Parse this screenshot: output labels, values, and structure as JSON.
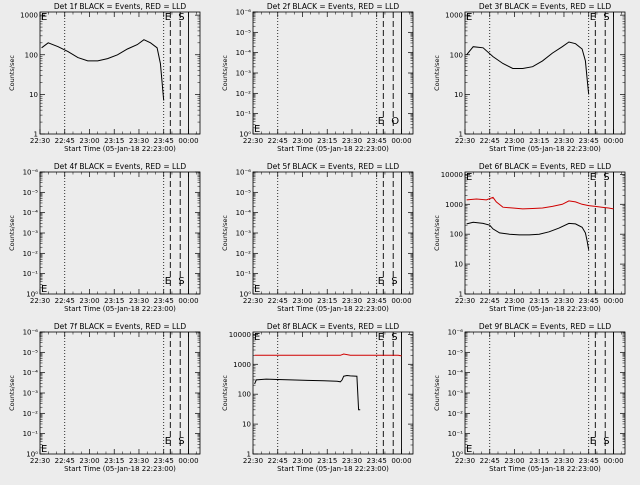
{
  "colors": {
    "background": "#ececec",
    "events": "#000000",
    "lld": "#d00000"
  },
  "common": {
    "ylabel": "Counts/sec",
    "xlabel": "Start Time (05-Jan-18 22:23:00)",
    "xticks": [
      "22:30",
      "22:45",
      "23:00",
      "23:15",
      "23:30",
      "23:45",
      "00:00"
    ],
    "x_range_min": [
      7,
      104
    ],
    "xtick_min": [
      7,
      22,
      37,
      52,
      67,
      82,
      97
    ],
    "dotted_lines_min": [
      22,
      82
    ],
    "dashed_lines_min": [
      86,
      92
    ],
    "solid_line_min": 97,
    "log_scale": true
  },
  "chart_data": [
    {
      "type": "line",
      "title": "Det 1f BLACK = Events, RED = LLD",
      "ytick_labels": [
        "1",
        "10",
        "100",
        "1000"
      ],
      "ylim": [
        1,
        1200
      ],
      "markers": [
        "E",
        "E",
        "S"
      ],
      "series": [
        {
          "color": "black",
          "x": [
            8,
            12,
            18,
            24,
            30,
            36,
            42,
            48,
            54,
            60,
            66,
            70,
            74,
            78,
            80,
            81,
            82
          ],
          "values": [
            150,
            200,
            160,
            120,
            85,
            70,
            70,
            80,
            100,
            140,
            180,
            240,
            200,
            150,
            60,
            20,
            7
          ]
        }
      ]
    },
    {
      "type": "line",
      "title": "Det 2f BLACK = Events, RED = LLD",
      "ytick_labels": [
        "10⁰",
        "10⁻¹",
        "10⁻²",
        "10⁻³",
        "10⁻⁴",
        "10⁻⁵",
        "10⁻⁶"
      ],
      "ylim": [
        1,
        1000000
      ],
      "markers": [
        "E",
        "E",
        "O"
      ],
      "series": []
    },
    {
      "type": "line",
      "title": "Det 3f BLACK = Events, RED = LLD",
      "ytick_labels": [
        "1",
        "10",
        "100",
        "1000"
      ],
      "ylim": [
        1,
        1200
      ],
      "markers": [
        "E",
        "E",
        "S"
      ],
      "series": [
        {
          "color": "black",
          "x": [
            8,
            12,
            18,
            24,
            30,
            36,
            42,
            48,
            54,
            60,
            66,
            70,
            74,
            78,
            80,
            81,
            82
          ],
          "values": [
            100,
            160,
            150,
            90,
            60,
            45,
            45,
            50,
            70,
            110,
            160,
            210,
            190,
            140,
            70,
            25,
            10
          ]
        }
      ]
    },
    {
      "type": "line",
      "title": "Det 4f BLACK = Events, RED = LLD",
      "ytick_labels": [
        "10⁰",
        "10⁻¹",
        "10⁻²",
        "10⁻³",
        "10⁻⁴",
        "10⁻⁵",
        "10⁻⁶"
      ],
      "ylim": [
        1,
        1000000
      ],
      "markers": [
        "E",
        "E",
        "S"
      ],
      "series": []
    },
    {
      "type": "line",
      "title": "Det 5f BLACK = Events, RED = LLD",
      "ytick_labels": [
        "10⁰",
        "10⁻¹",
        "10⁻²",
        "10⁻³",
        "10⁻⁴",
        "10⁻⁵",
        "10⁻⁶"
      ],
      "ylim": [
        1,
        1000000
      ],
      "markers": [
        "E",
        "E",
        "S"
      ],
      "series": []
    },
    {
      "type": "line",
      "title": "Det 6f BLACK = Events, RED = LLD",
      "ytick_labels": [
        "1",
        "10",
        "100",
        "1000",
        "10000"
      ],
      "ylim": [
        1,
        12000
      ],
      "markers": [
        "E",
        "E",
        "S"
      ],
      "series": [
        {
          "color": "red",
          "x": [
            8,
            14,
            20,
            24,
            26,
            30,
            36,
            42,
            48,
            54,
            60,
            66,
            70,
            74,
            78,
            82,
            86,
            90,
            94,
            97
          ],
          "values": [
            1400,
            1500,
            1400,
            1700,
            1200,
            800,
            750,
            700,
            720,
            750,
            850,
            1000,
            1300,
            1200,
            1000,
            900,
            850,
            800,
            750,
            700
          ]
        },
        {
          "color": "black",
          "x": [
            8,
            12,
            18,
            22,
            24,
            28,
            34,
            40,
            46,
            52,
            58,
            64,
            70,
            74,
            78,
            80,
            81,
            82
          ],
          "values": [
            220,
            250,
            230,
            200,
            150,
            110,
            100,
            95,
            95,
            100,
            120,
            160,
            230,
            220,
            170,
            110,
            60,
            30
          ]
        }
      ]
    },
    {
      "type": "line",
      "title": "Det 7f BLACK = Events, RED = LLD",
      "ytick_labels": [
        "10⁰",
        "10⁻¹",
        "10⁻²",
        "10⁻³",
        "10⁻⁴",
        "10⁻⁵",
        "10⁻⁶"
      ],
      "ylim": [
        1,
        1000000
      ],
      "markers": [
        "E",
        "E",
        "S"
      ],
      "series": []
    },
    {
      "type": "line",
      "title": "Det 8f BLACK = Events, RED = LLD",
      "ytick_labels": [
        "1",
        "10",
        "100",
        "1000",
        "10000"
      ],
      "ylim": [
        1,
        12000
      ],
      "markers": [
        "E",
        "E",
        "S"
      ],
      "series": [
        {
          "color": "red",
          "x": [
            8,
            20,
            30,
            40,
            50,
            60,
            62,
            66,
            70,
            75,
            80,
            85,
            90,
            95,
            97
          ],
          "values": [
            2000,
            2000,
            2000,
            2000,
            2000,
            2000,
            2200,
            2000,
            2000,
            2000,
            2000,
            2000,
            2000,
            2000,
            1900
          ]
        },
        {
          "color": "black",
          "x": [
            8,
            9,
            15,
            22,
            30,
            40,
            50,
            58,
            60,
            61,
            62,
            64,
            66,
            70,
            71,
            72
          ],
          "values": [
            220,
            300,
            320,
            310,
            300,
            290,
            280,
            270,
            260,
            300,
            400,
            420,
            410,
            400,
            30,
            30
          ]
        }
      ]
    },
    {
      "type": "line",
      "title": "Det 9f BLACK = Events, RED = LLD",
      "ytick_labels": [
        "10⁰",
        "10⁻¹",
        "10⁻²",
        "10⁻³",
        "10⁻⁴",
        "10⁻⁵",
        "10⁻⁶"
      ],
      "ylim": [
        1,
        1000000
      ],
      "markers": [
        "E",
        "E",
        "S"
      ],
      "series": []
    }
  ]
}
